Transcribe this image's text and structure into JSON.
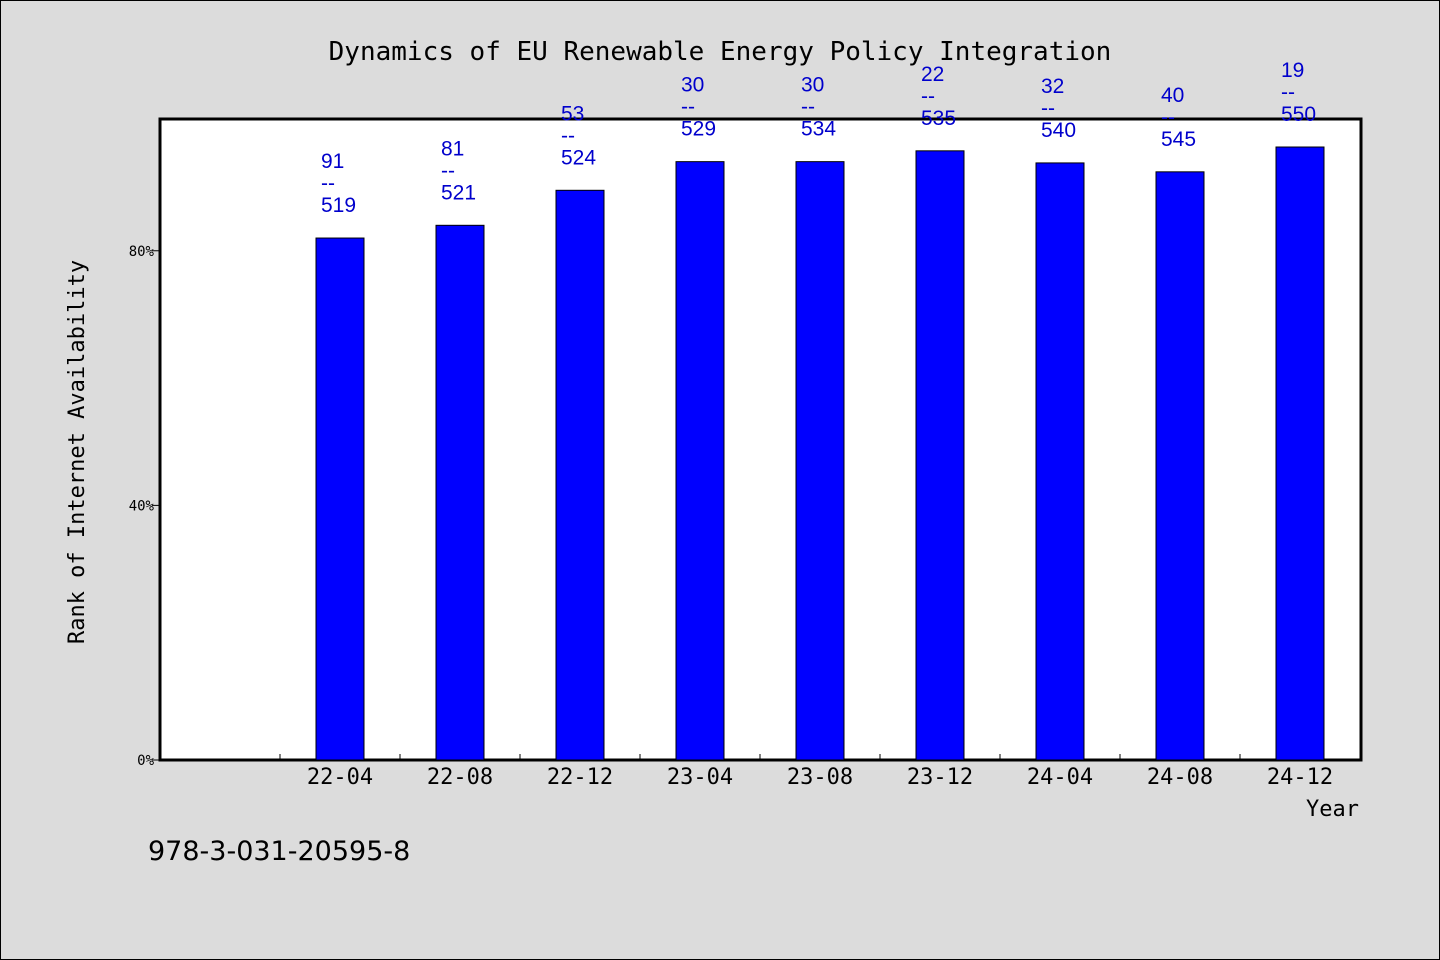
{
  "chart_data": {
    "type": "bar",
    "title": "Dynamics of EU Renewable Energy Policy Integration",
    "xlabel": "Year",
    "ylabel": "Rank of Internet Availability",
    "categories": [
      "22-04",
      "22-08",
      "22-12",
      "23-04",
      "23-08",
      "23-12",
      "24-04",
      "24-08",
      "24-12"
    ],
    "values": [
      82,
      84,
      89.5,
      94,
      94,
      95.7,
      93.8,
      92.4,
      96.3
    ],
    "bar_labels": [
      {
        "top": "91",
        "sep": "--",
        "bottom": "519"
      },
      {
        "top": "81",
        "sep": "--",
        "bottom": "521"
      },
      {
        "top": "53",
        "sep": "--",
        "bottom": "524"
      },
      {
        "top": "30",
        "sep": "--",
        "bottom": "529"
      },
      {
        "top": "30",
        "sep": "--",
        "bottom": "534"
      },
      {
        "top": "22",
        "sep": "--",
        "bottom": "535"
      },
      {
        "top": "32",
        "sep": "--",
        "bottom": "540"
      },
      {
        "top": "40",
        "sep": "--",
        "bottom": "545"
      },
      {
        "top": "19",
        "sep": "--",
        "bottom": "550"
      }
    ],
    "y_ticks": [
      {
        "value": 0,
        "label": "0%"
      },
      {
        "value": 40,
        "label": "40%"
      },
      {
        "value": 80,
        "label": "80%"
      }
    ],
    "ylim": [
      0,
      100.7
    ],
    "grid": false,
    "legend": "none",
    "bar_color": "#0000ff",
    "label_color": "#0000cc",
    "background_color": "#dcdcdc",
    "plot_background_color": "#ffffff"
  },
  "footer": {
    "isbn": "978-3-031-20595-8"
  }
}
